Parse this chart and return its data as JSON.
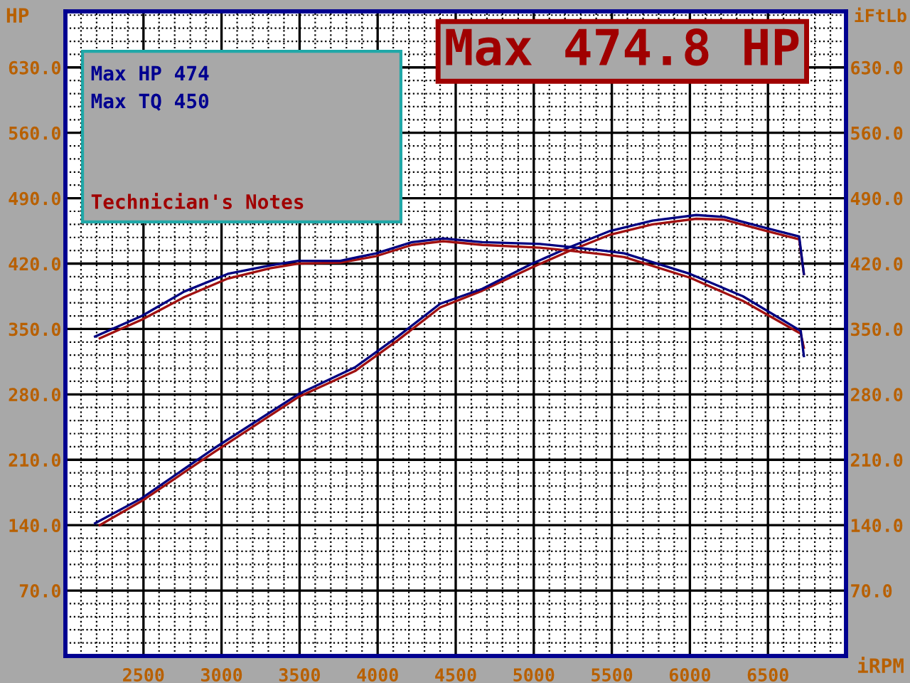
{
  "chart_data": {
    "type": "line",
    "title": "Max 474.8 HP",
    "ylabel": "HP",
    "y2label": "iFtLb",
    "xlabel": "iRPM",
    "annotations": [
      "Max HP 474",
      "Max TQ 450",
      "Technician's Notes"
    ],
    "xlim": [
      2000,
      7000
    ],
    "xticks": [
      2500,
      3000,
      3500,
      4000,
      4500,
      5000,
      5500,
      6000,
      6500
    ],
    "ylim": [
      0,
      690
    ],
    "yticks": [
      {
        "value": 70,
        "label": "70.0"
      },
      {
        "value": 140,
        "label": "140.0"
      },
      {
        "value": 210,
        "label": "210.0"
      },
      {
        "value": 280,
        "label": "280.0"
      },
      {
        "value": 350,
        "label": "350.0"
      },
      {
        "value": 420,
        "label": "420.0"
      },
      {
        "value": 490,
        "label": "490.0"
      },
      {
        "value": 560,
        "label": "560.0"
      },
      {
        "value": 630,
        "label": "630.0"
      }
    ],
    "y2lim": [
      0,
      690
    ],
    "y2ticks": [
      {
        "value": 70,
        "label": "70.0"
      },
      {
        "value": 140,
        "label": "140.0"
      },
      {
        "value": 210,
        "label": "210.0"
      },
      {
        "value": 280,
        "label": "280.0"
      },
      {
        "value": 350,
        "label": "350.0"
      },
      {
        "value": 420,
        "label": "420.0"
      },
      {
        "value": 490,
        "label": "490.0"
      },
      {
        "value": 560,
        "label": "560.0"
      },
      {
        "value": 630,
        "label": "630.0"
      }
    ],
    "grid": true,
    "legend": false,
    "marker": "none",
    "line_style": "solid",
    "series": [
      {
        "color": "#a01010",
        "x": [
          2220,
          2490,
          2950,
          3490,
          3855,
          4130,
          4400,
          4670,
          4990,
          5220,
          5490,
          5760,
          6040,
          6220,
          6490,
          6700,
          6730
        ],
        "values": [
          140,
          166,
          218,
          277,
          305,
          338,
          373,
          391,
          416,
          433,
          451,
          462,
          468,
          467,
          455,
          446,
          409
        ]
      },
      {
        "color": "#000080",
        "x": [
          2190,
          2490,
          2950,
          3490,
          3855,
          4130,
          4400,
          4670,
          4990,
          5220,
          5490,
          5760,
          6040,
          6220,
          6490,
          6700,
          6730
        ],
        "values": [
          142,
          169,
          222,
          280,
          309,
          342,
          377,
          393,
          420,
          437,
          455,
          466,
          472,
          470,
          458,
          449,
          409
        ]
      },
      {
        "color": "#a01010",
        "x": [
          2220,
          2490,
          2760,
          3040,
          3310,
          3490,
          3760,
          3990,
          4220,
          4420,
          4670,
          5040,
          5220,
          5440,
          5580,
          6000,
          6340,
          6710,
          6730
        ],
        "values": [
          340,
          360,
          384,
          404,
          415,
          420,
          421,
          428,
          440,
          444,
          440,
          437,
          434,
          430,
          427,
          405,
          380,
          345,
          330
        ]
      },
      {
        "color": "#000080",
        "x": [
          2190,
          2490,
          2760,
          3040,
          3310,
          3490,
          3760,
          3990,
          4220,
          4420,
          4670,
          5040,
          5220,
          5440,
          5580,
          6000,
          6340,
          6710,
          6730
        ],
        "values": [
          342,
          364,
          390,
          409,
          418,
          423,
          423,
          431,
          443,
          447,
          443,
          441,
          438,
          434,
          431,
          409,
          385,
          348,
          321
        ]
      }
    ]
  }
}
